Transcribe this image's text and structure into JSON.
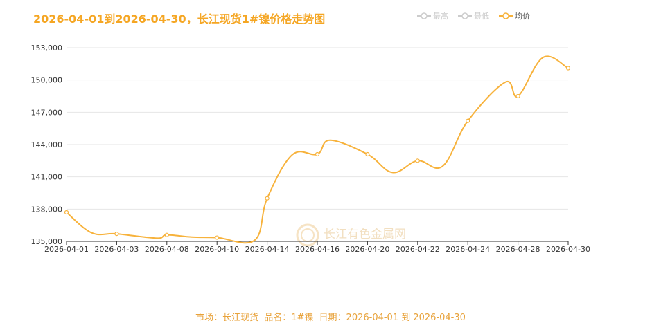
{
  "title": "2026-04-01到2026-04-30，长江现货1#镍价格走势图",
  "legend": [
    {
      "label": "最高",
      "active": false
    },
    {
      "label": "最低",
      "active": false
    },
    {
      "label": "均价",
      "active": true
    }
  ],
  "colors": {
    "accent": "#f5a623",
    "line": "#f7b23b",
    "grid": "#e6e6e6",
    "axis": "#333333"
  },
  "watermark": "长江有色金属网",
  "footer": {
    "market": "市场：长江现货",
    "product": "品名：1#镍",
    "date": "日期：2026-04-01 到 2026-04-30"
  },
  "chart_data": {
    "type": "line",
    "title": "2026-04-01到2026-04-30，长江现货1#镍价格走势图",
    "x_tick_labels": [
      "2026-04-01",
      "2026-04-03",
      "2026-04-08",
      "2026-04-10",
      "2026-04-14",
      "2026-04-16",
      "2026-04-20",
      "2026-04-22",
      "2026-04-24",
      "2026-04-28",
      "2026-04-30"
    ],
    "y_tick_labels": [
      "135,000",
      "138,000",
      "141,000",
      "144,000",
      "147,000",
      "150,000",
      "153,000"
    ],
    "ylim": [
      135000,
      153000
    ],
    "yticks": [
      135000,
      138000,
      141000,
      144000,
      147000,
      150000,
      153000
    ],
    "grid": true,
    "legend_position": "top-right",
    "series": [
      {
        "name": "均价",
        "categories": [
          "2026-04-01",
          "2026-04-02",
          "2026-04-03",
          "2026-04-07",
          "2026-04-08",
          "2026-04-09",
          "2026-04-10",
          "2026-04-13",
          "2026-04-14",
          "2026-04-15",
          "2026-04-16",
          "2026-04-17",
          "2026-04-20",
          "2026-04-21",
          "2026-04-22",
          "2026-04-23",
          "2026-04-24",
          "2026-04-27",
          "2026-04-28",
          "2026-04-29",
          "2026-04-30"
        ],
        "values": [
          137700,
          135800,
          135700,
          135300,
          135600,
          135400,
          135350,
          135100,
          139000,
          143050,
          143100,
          144400,
          143100,
          141400,
          142500,
          142000,
          146200,
          149800,
          148500,
          152100,
          151100
        ]
      }
    ]
  }
}
